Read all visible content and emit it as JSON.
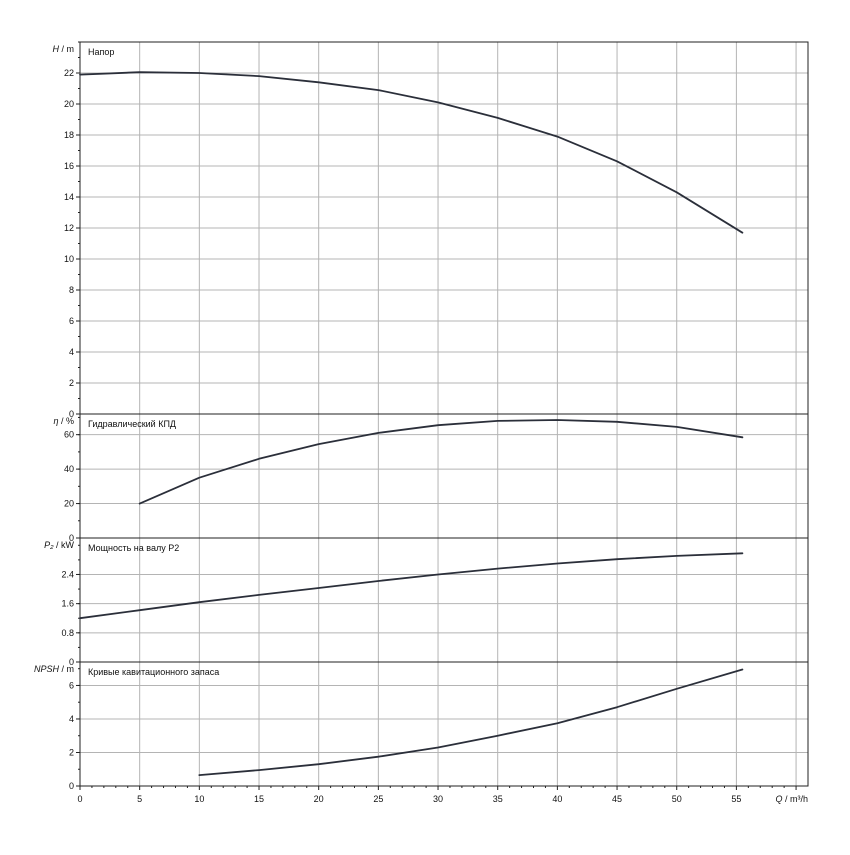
{
  "colors": {
    "grid": "#b4b4b4",
    "frame": "#222222",
    "curve": "#2b2f3a",
    "background": "#ffffff"
  },
  "x_axis": {
    "label_var": "Q",
    "label_unit": "m³/h",
    "ticks": [
      0,
      5,
      10,
      15,
      20,
      25,
      30,
      35,
      40,
      45,
      50,
      55
    ]
  },
  "chart_data": [
    {
      "type": "line",
      "title": "Напор",
      "ylabel_var": "H",
      "ylabel_unit": "m",
      "ylim": [
        0,
        24
      ],
      "yticks": [
        0,
        2,
        4,
        6,
        8,
        10,
        12,
        14,
        16,
        18,
        20,
        22
      ],
      "xlim": [
        0,
        61
      ],
      "series": [
        {
          "x": [
            0,
            5,
            10,
            15,
            20,
            25,
            30,
            35,
            40,
            45,
            50,
            55.5
          ],
          "y": [
            21.9,
            22.05,
            22.0,
            21.8,
            21.4,
            20.9,
            20.1,
            19.1,
            17.9,
            16.3,
            14.3,
            11.7
          ]
        }
      ]
    },
    {
      "type": "line",
      "title": "Гидравлический КПД",
      "ylabel_var": "η",
      "ylabel_unit": "%",
      "ylim": [
        0,
        72
      ],
      "yticks": [
        0,
        20,
        40,
        60
      ],
      "xlim": [
        0,
        61
      ],
      "series": [
        {
          "x": [
            5,
            10,
            15,
            20,
            25,
            30,
            35,
            40,
            45,
            50,
            55.5
          ],
          "y": [
            20,
            35,
            46,
            54.5,
            61,
            65.5,
            68,
            68.5,
            67.5,
            64.5,
            58.5
          ]
        }
      ]
    },
    {
      "type": "line",
      "title": "Мощность на валу P2",
      "ylabel_var": "P₂",
      "ylabel_unit": "kW",
      "ylim": [
        0,
        3.4
      ],
      "yticks": [
        0,
        0.8,
        1.6,
        2.4
      ],
      "xlim": [
        0,
        61
      ],
      "series": [
        {
          "x": [
            0,
            5,
            10,
            15,
            20,
            25,
            30,
            35,
            40,
            45,
            50,
            55.5
          ],
          "y": [
            1.2,
            1.42,
            1.64,
            1.84,
            2.03,
            2.22,
            2.4,
            2.56,
            2.7,
            2.82,
            2.91,
            2.98
          ]
        }
      ]
    },
    {
      "type": "line",
      "title": "Кривые кавитационного запаса",
      "ylabel_var": "NPSH",
      "ylabel_unit": "m",
      "ylim": [
        0,
        7.4
      ],
      "yticks": [
        0,
        2,
        4,
        6
      ],
      "xlim": [
        0,
        61
      ],
      "series": [
        {
          "x": [
            10,
            15,
            20,
            25,
            30,
            35,
            40,
            45,
            50,
            55.5
          ],
          "y": [
            0.65,
            0.95,
            1.3,
            1.75,
            2.3,
            3.0,
            3.75,
            4.7,
            5.8,
            6.95
          ]
        }
      ]
    }
  ]
}
